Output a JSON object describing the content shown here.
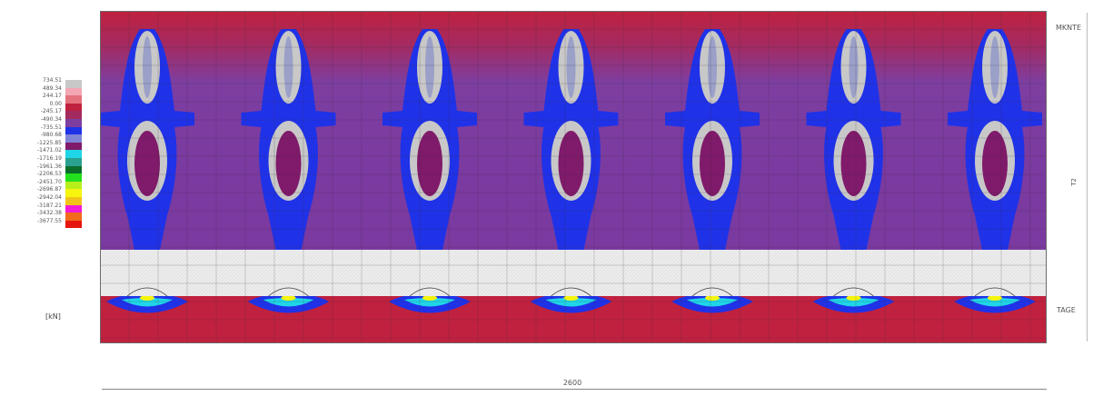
{
  "legend": {
    "entries": [
      {
        "value": "734.51",
        "color": "#c8c8c8"
      },
      {
        "value": "489.34",
        "color": "#f2a7b3"
      },
      {
        "value": "244.17",
        "color": "#e4717e"
      },
      {
        "value": "0.00",
        "color": "#c0213e"
      },
      {
        "value": "-245.17",
        "color": "#a32a5e"
      },
      {
        "value": "-490.34",
        "color": "#7d3ea0"
      },
      {
        "value": "-735.51",
        "color": "#1f32e8"
      },
      {
        "value": "-980.68",
        "color": "#7f84d6"
      },
      {
        "value": "-1225.85",
        "color": "#801a6a"
      },
      {
        "value": "-1471.02",
        "color": "#1fd6e8"
      },
      {
        "value": "-1716.19",
        "color": "#2aa08f"
      },
      {
        "value": "-1961.36",
        "color": "#0a6d2a"
      },
      {
        "value": "-2206.53",
        "color": "#22e01e"
      },
      {
        "value": "-2451.70",
        "color": "#b8ee1c"
      },
      {
        "value": "-2696.87",
        "color": "#f5f50e"
      },
      {
        "value": "-2942.04",
        "color": "#f2c41a"
      },
      {
        "value": "-3187.21",
        "color": "#f21ad6"
      },
      {
        "value": "-3432.38",
        "color": "#f26a1c"
      },
      {
        "value": "-3677.55",
        "color": "#e6160e"
      }
    ],
    "unit": "[kN]"
  },
  "labels": {
    "top_right": "MKNTE",
    "bottom_right": "TAGE",
    "right_vertical": "T2",
    "dimension": "2600"
  },
  "colors": {
    "field_background": "#c0213e",
    "field_mid": "#7d3ea0",
    "band_blue": "#1f32e8",
    "core_grey": "#c8c8c8",
    "core_red": "#801a6a",
    "strip": "#e6e6e6",
    "grid_line": "#3a2a3a"
  },
  "field": {
    "column_count": 7
  }
}
